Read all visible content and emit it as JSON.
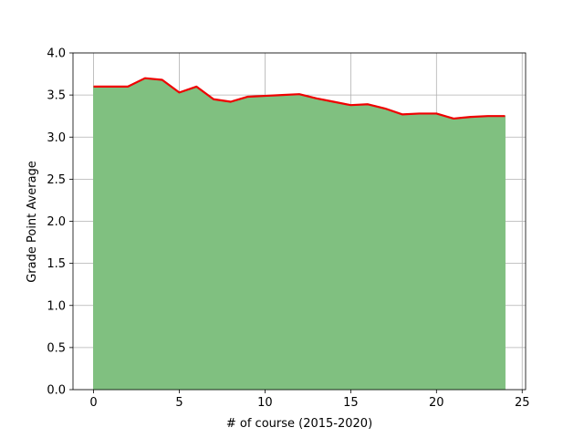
{
  "chart_data": {
    "type": "area",
    "xlabel": "# of course (2015-2020)",
    "ylabel": "Grade Point Average",
    "xlim": [
      -1.2,
      25.2
    ],
    "ylim": [
      0.0,
      4.0
    ],
    "grid": true,
    "x_ticks": [
      0,
      5,
      10,
      15,
      20,
      25
    ],
    "y_ticks": [
      0.0,
      0.5,
      1.0,
      1.5,
      2.0,
      2.5,
      3.0,
      3.5,
      4.0
    ],
    "x_tick_labels": [
      "0",
      "5",
      "10",
      "15",
      "20",
      "25"
    ],
    "y_tick_labels": [
      "0.0",
      "0.5",
      "1.0",
      "1.5",
      "2.0",
      "2.5",
      "3.0",
      "3.5",
      "4.0"
    ],
    "series": [
      {
        "x": [
          0,
          1,
          2,
          3,
          4,
          5,
          6,
          7,
          8,
          9,
          10,
          11,
          12,
          13,
          14,
          15,
          16,
          17,
          18,
          19,
          20,
          21,
          22,
          23,
          24
        ],
        "values": [
          3.6,
          3.6,
          3.6,
          3.7,
          3.68,
          3.53,
          3.6,
          3.45,
          3.42,
          3.48,
          3.49,
          3.5,
          3.51,
          3.46,
          3.42,
          3.38,
          3.39,
          3.34,
          3.27,
          3.28,
          3.28,
          3.22,
          3.24,
          3.25,
          3.25
        ],
        "line_color": "#ee0000",
        "fill_color": "#80c080"
      }
    ]
  }
}
